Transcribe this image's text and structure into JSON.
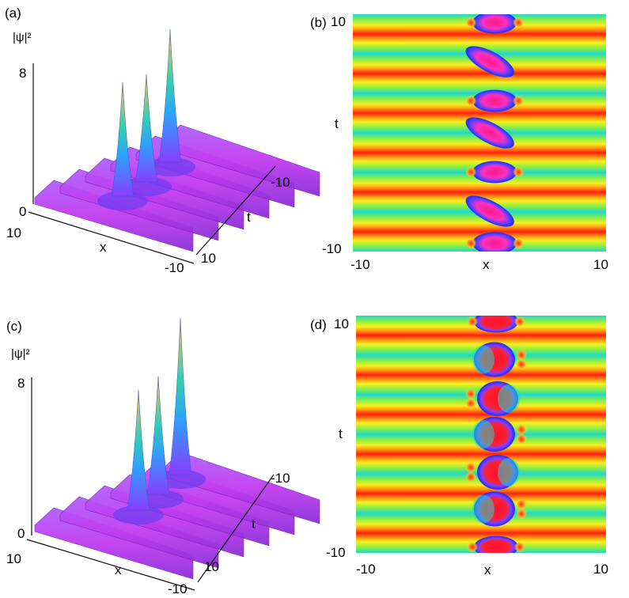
{
  "figure": {
    "panels": [
      {
        "label": "(a)",
        "type": "surface3d",
        "zlabel": "|ψ|²",
        "zticks": [
          "8",
          "0"
        ],
        "xticks": [
          "10",
          "-10"
        ],
        "xlabel": "x",
        "tticks": [
          "-10",
          "10"
        ],
        "tlabel": "t"
      },
      {
        "label": "(b)",
        "type": "heatmap",
        "ylabel": "t",
        "xlabel": "x",
        "yticks": [
          "10",
          "-10"
        ],
        "xticks": [
          "-10",
          "10"
        ]
      },
      {
        "label": "(c)",
        "type": "surface3d",
        "zlabel": "|ψ|²",
        "zticks": [
          "8",
          "0"
        ],
        "xticks": [
          "10",
          "-10"
        ],
        "xlabel": "x",
        "tticks": [
          "-10",
          "10"
        ],
        "tlabel": "t"
      },
      {
        "label": "(d)",
        "type": "heatmap",
        "ylabel": "t",
        "xlabel": "x",
        "yticks": [
          "10",
          "-10"
        ],
        "xticks": [
          "-10",
          "10"
        ]
      }
    ]
  },
  "chart_data": [
    {
      "panel": "(a)",
      "type": "surface3d",
      "x_range": [
        -10,
        10
      ],
      "t_range": [
        -10,
        10
      ],
      "z_range": [
        0,
        8
      ],
      "zlabel": "|ψ|²",
      "xlabel": "x",
      "tlabel": "t",
      "background_ridges": 6,
      "peaks": [
        {
          "height": 7.2
        },
        {
          "height": 6.8
        },
        {
          "height": 8.4
        }
      ],
      "colors": {
        "low": "#c040ff",
        "mid": "#30c0ff",
        "high": "#ff8030"
      }
    },
    {
      "panel": "(b)",
      "type": "heatmap",
      "x_range": [
        -10,
        10
      ],
      "t_range": [
        -10,
        10
      ],
      "xlabel": "x",
      "ylabel": "t",
      "background_bands": 6,
      "defects": [
        {
          "t": 9.3,
          "shape": "blob"
        },
        {
          "t": 6.0,
          "shape": "tilted"
        },
        {
          "t": 2.7,
          "shape": "blob"
        },
        {
          "t": 0.0,
          "shape": "tilted"
        },
        {
          "t": -3.3,
          "shape": "blob"
        },
        {
          "t": -6.6,
          "shape": "tilted"
        },
        {
          "t": -9.3,
          "shape": "blob"
        }
      ],
      "colors": {
        "low": "#1a2cff",
        "mid1": "#20e0c0",
        "mid2": "#a0ff40",
        "high1": "#ffe020",
        "high2": "#ff2010",
        "max": "#ff30c0"
      }
    },
    {
      "panel": "(c)",
      "type": "surface3d",
      "x_range": [
        -10,
        10
      ],
      "t_range": [
        -10,
        10
      ],
      "z_range": [
        0,
        8
      ],
      "zlabel": "|ψ|²",
      "xlabel": "x",
      "tlabel": "t",
      "background_ridges": 6,
      "peaks": [
        {
          "height": 6.6
        },
        {
          "height": 6.5
        },
        {
          "height": 8.6
        }
      ],
      "colors": {
        "low": "#c040ff",
        "mid": "#30c0ff",
        "high": "#ff8030"
      }
    },
    {
      "panel": "(d)",
      "type": "heatmap",
      "x_range": [
        -10,
        10
      ],
      "t_range": [
        -10,
        10
      ],
      "xlabel": "x",
      "ylabel": "t",
      "background_bands": 6,
      "defects": [
        {
          "t": 9.5,
          "shape": "blob"
        },
        {
          "t": 6.3,
          "shape": "crescent-left"
        },
        {
          "t": 3.0,
          "shape": "crescent-right"
        },
        {
          "t": 0.0,
          "shape": "crescent-left"
        },
        {
          "t": -3.2,
          "shape": "crescent-right"
        },
        {
          "t": -6.3,
          "shape": "crescent-left"
        },
        {
          "t": -9.5,
          "shape": "blob"
        }
      ],
      "colors": {
        "low": "#1a2cff",
        "mid1": "#20e0c0",
        "mid2": "#a0ff40",
        "high1": "#ffe020",
        "high2": "#ff2010",
        "max": "#ff2040"
      }
    }
  ]
}
